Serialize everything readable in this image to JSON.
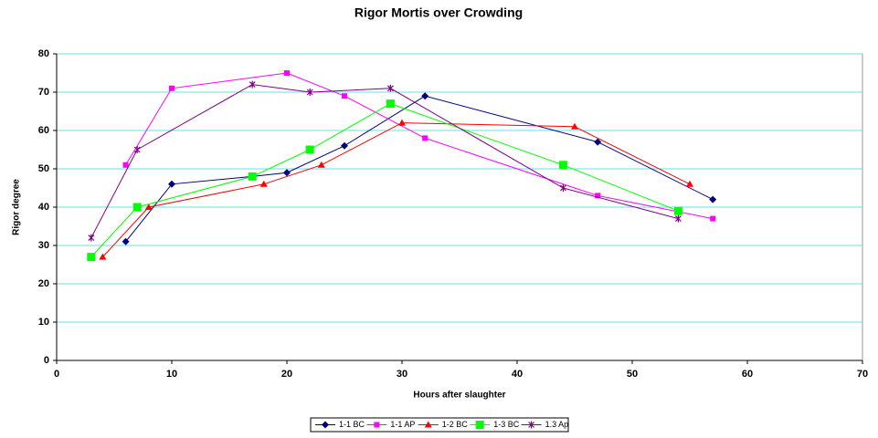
{
  "chart_data": {
    "type": "line",
    "title": "Rigor Mortis over Crowding",
    "x_label": "Hours after slaughter",
    "y_label": "Rigor degree",
    "xlim": [
      0,
      70
    ],
    "xticks": [
      0,
      10,
      20,
      30,
      40,
      50,
      60,
      70
    ],
    "ylim": [
      0,
      80
    ],
    "yticks": [
      0,
      10,
      20,
      30,
      40,
      50,
      60,
      70,
      80
    ],
    "grid": true,
    "grid_color": "#66e0e8",
    "legend": "bottom",
    "series": [
      {
        "name": "1-1 BC",
        "color": "#000080",
        "marker": "diamond",
        "x": [
          6,
          10,
          17,
          20,
          25,
          32,
          47,
          57
        ],
        "values": [
          31,
          46,
          48,
          49,
          56,
          69,
          57,
          42
        ]
      },
      {
        "name": "1-1 AP",
        "color": "#ff00ff",
        "marker": "square",
        "x": [
          6,
          10,
          20,
          25,
          32,
          47,
          57
        ],
        "values": [
          51,
          71,
          75,
          69,
          58,
          43,
          37
        ]
      },
      {
        "name": "1-2 BC",
        "color": "#ff0000",
        "marker": "triangle",
        "x": [
          4,
          8,
          18,
          23,
          30,
          45,
          55
        ],
        "values": [
          27,
          40,
          46,
          51,
          62,
          61,
          46
        ]
      },
      {
        "name": "1-3 BC",
        "color": "#00ff00",
        "marker": "bigsquare",
        "x": [
          3,
          7,
          17,
          22,
          29,
          44,
          54
        ],
        "values": [
          27,
          40,
          48,
          55,
          67,
          51,
          39
        ]
      },
      {
        "name": "1.3 Ap",
        "color": "#800080",
        "marker": "star",
        "x": [
          3,
          7,
          17,
          22,
          29,
          44,
          54
        ],
        "values": [
          32,
          55,
          72,
          70,
          71,
          45,
          37
        ]
      }
    ]
  }
}
